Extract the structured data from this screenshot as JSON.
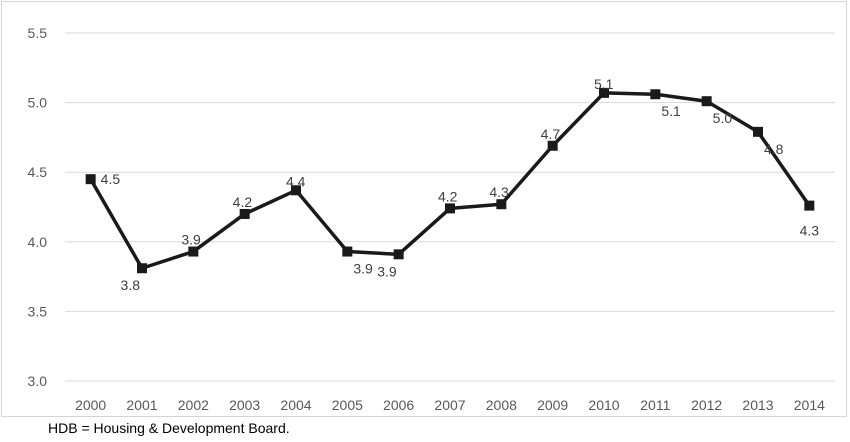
{
  "chart_data": {
    "type": "line",
    "title": "",
    "xlabel": "",
    "ylabel": "",
    "x": [
      "2000",
      "2001",
      "2002",
      "2003",
      "2004",
      "2005",
      "2006",
      "2007",
      "2008",
      "2009",
      "2010",
      "2011",
      "2012",
      "2013",
      "2014"
    ],
    "series": [
      {
        "values": [
          4.45,
          3.81,
          3.93,
          4.2,
          4.37,
          3.93,
          3.91,
          4.24,
          4.27,
          4.69,
          5.07,
          5.06,
          5.01,
          4.79,
          4.26
        ],
        "labels": [
          "4.5",
          "3.8",
          "3.9",
          "4.2",
          "4.4",
          "3.9",
          "3.9",
          "4.2",
          "4.3",
          "4.7",
          "5.1",
          "5.1",
          "5.0",
          "4.8",
          "4.3"
        ],
        "color": "#1a1a1a"
      }
    ],
    "yticks": [
      "3.0",
      "3.5",
      "4.0",
      "4.5",
      "5.0",
      "5.5"
    ],
    "ylim": [
      3.0,
      5.5
    ],
    "grid": true,
    "legend": "none",
    "marker": "square"
  },
  "note": "HDB = Housing & Development Board.",
  "colors": {
    "gridline": "#d9d9d9",
    "series": "#1a1a1a",
    "tick_text": "#595959"
  }
}
